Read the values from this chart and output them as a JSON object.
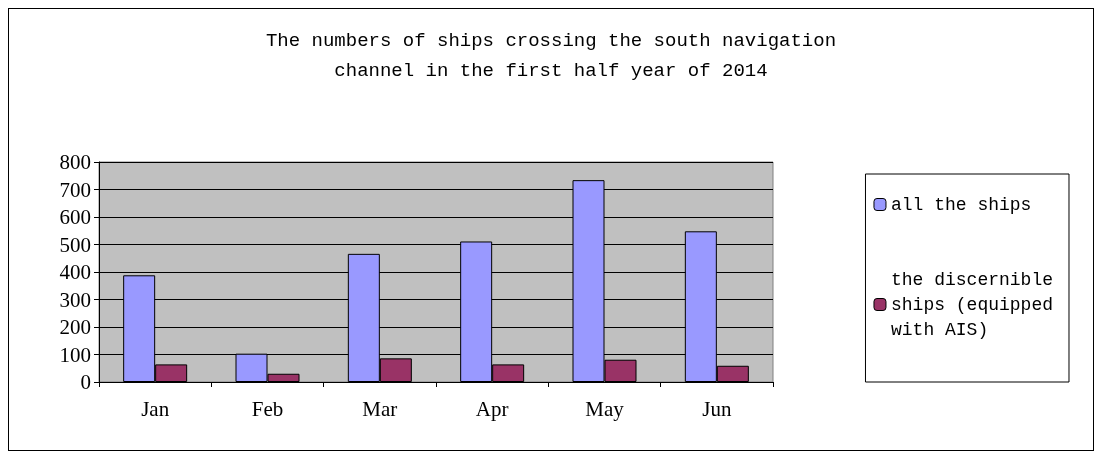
{
  "chart_data": {
    "type": "bar",
    "title": "The numbers of ships crossing the south navigation\nchannel in the first half year of 2014",
    "categories": [
      "Jan",
      "Feb",
      "Mar",
      "Apr",
      "May",
      "Jun"
    ],
    "series": [
      {
        "name": "all the ships",
        "color": "#9999ff",
        "values": [
          388,
          103,
          466,
          511,
          734,
          548
        ]
      },
      {
        "name": "the discernible ships (equipped with AIS)",
        "color": "#993366",
        "values": [
          64,
          30,
          86,
          64,
          81,
          59
        ]
      }
    ],
    "ylim": [
      0,
      800
    ],
    "yticks": [
      0,
      100,
      200,
      300,
      400,
      500,
      600,
      700,
      800
    ],
    "grid": "y",
    "legend": "right"
  }
}
